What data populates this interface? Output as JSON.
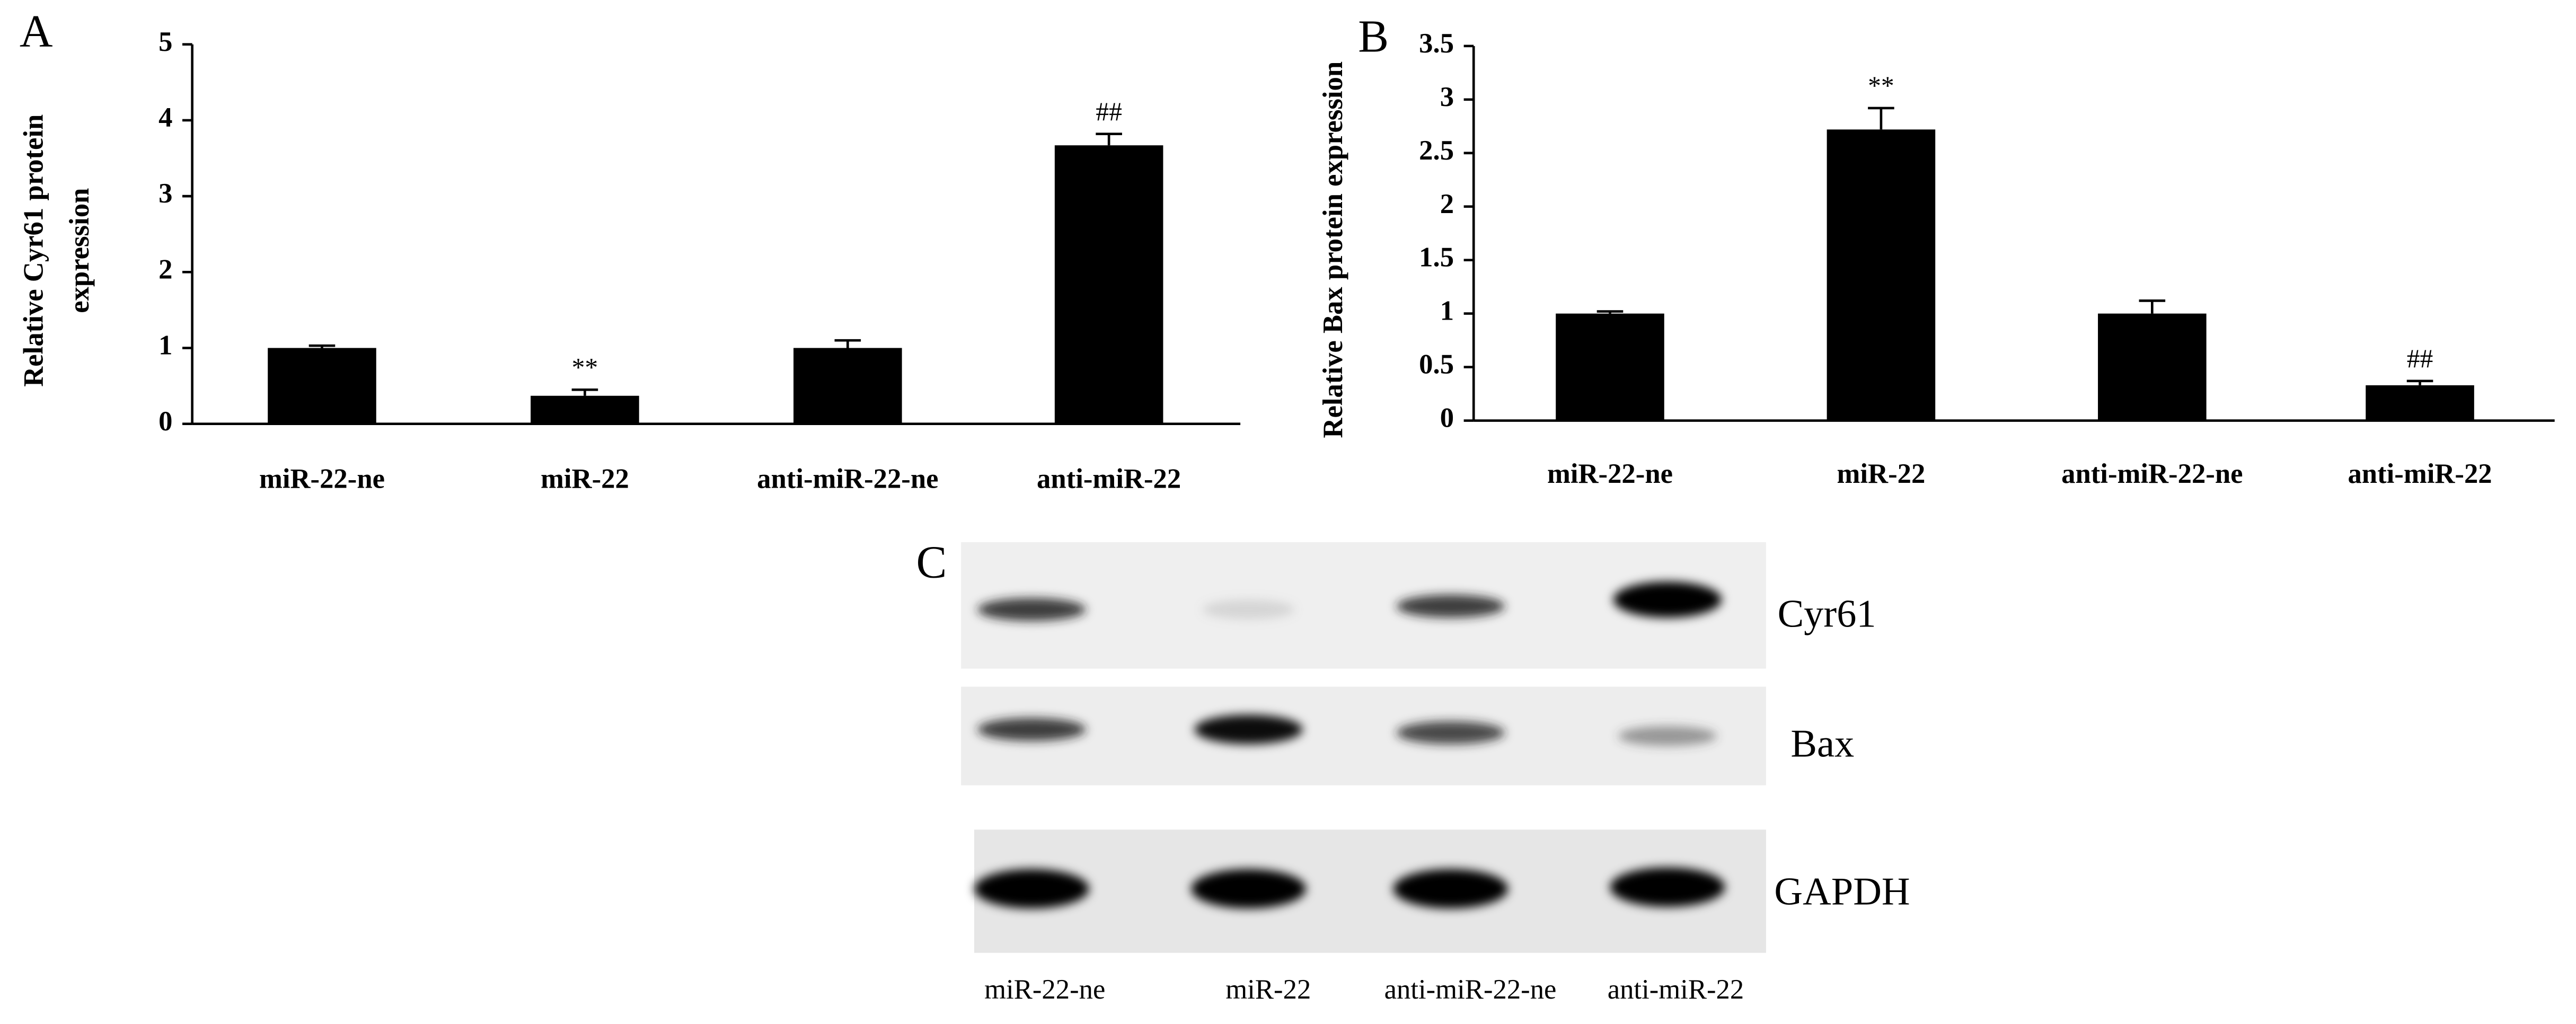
{
  "chart_data": [
    {
      "type": "bar",
      "panel": "A",
      "ylabel": [
        "Relative Cyr61 protein",
        "expression"
      ],
      "categories": [
        "miR-22-ne",
        "miR-22",
        "anti-miR-22-ne",
        "anti-miR-22"
      ],
      "values": [
        1.0,
        0.37,
        1.0,
        3.67
      ],
      "errors": [
        0.03,
        0.08,
        0.1,
        0.15
      ],
      "annotations": [
        null,
        "**",
        null,
        "##"
      ],
      "color": "#000000",
      "ylim": [
        0,
        5
      ],
      "yticks": [
        0,
        1,
        2,
        3,
        4,
        5
      ]
    },
    {
      "type": "bar",
      "panel": "B",
      "ylabel": [
        "Relative Bax protein expression"
      ],
      "categories": [
        "miR-22-ne",
        "miR-22",
        "anti-miR-22-ne",
        "anti-miR-22"
      ],
      "values": [
        1.0,
        2.72,
        1.0,
        0.33
      ],
      "errors": [
        0.02,
        0.2,
        0.12,
        0.04
      ],
      "annotations": [
        null,
        "**",
        null,
        "##"
      ],
      "color": "#000000",
      "ylim": [
        0,
        3.5
      ],
      "yticks": [
        0,
        0.5,
        1,
        1.5,
        2,
        2.5,
        3,
        3.5
      ]
    }
  ],
  "blot": {
    "panel": "C",
    "rows": [
      "Cyr61",
      "Bax",
      "GAPDH"
    ],
    "lanes": [
      "miR-22-ne",
      "miR-22",
      "anti-miR-22-ne",
      "anti-miR-22"
    ]
  }
}
